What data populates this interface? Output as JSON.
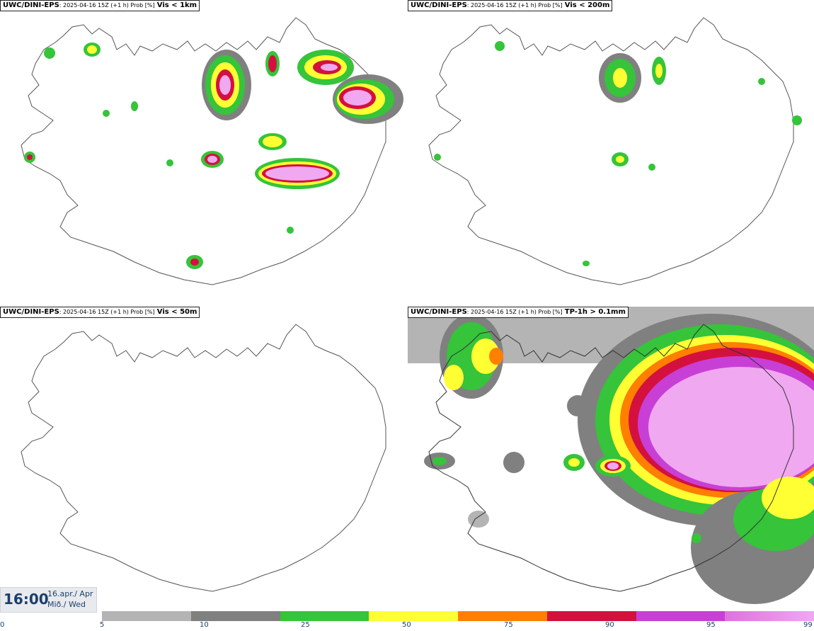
{
  "panels": [
    {
      "model": "UWC/DINI-EPS",
      "meta": ": 2025-04-16 15Z (+1 h) Prob [%]",
      "param": "Vis < 1km"
    },
    {
      "model": "UWC/DINI-EPS",
      "meta": ": 2025-04-16 15Z (+1 h) Prob [%]",
      "param": "Vis < 200m"
    },
    {
      "model": "UWC/DINI-EPS",
      "meta": ": 2025-04-16 15Z (+1 h) Prob [%]",
      "param": "Vis < 50m"
    },
    {
      "model": "UWC/DINI-EPS",
      "meta": ": 2025-04-16 15Z (+1 h) Prob [%]",
      "param": "TP-1h > 0.1mm"
    }
  ],
  "valid_time": {
    "time": "16:00",
    "date": "16.apr./ Apr",
    "weekday": "Mið./ Wed"
  },
  "legend": {
    "ticks": [
      "0",
      "5",
      "10",
      "25",
      "50",
      "75",
      "90",
      "95",
      "99"
    ],
    "colors": [
      "#b4b4b4",
      "#808080",
      "#35c43a",
      "#ffff33",
      "#ff7f00",
      "#d4103f",
      "#c83fd6",
      "#f0a8f0"
    ]
  }
}
